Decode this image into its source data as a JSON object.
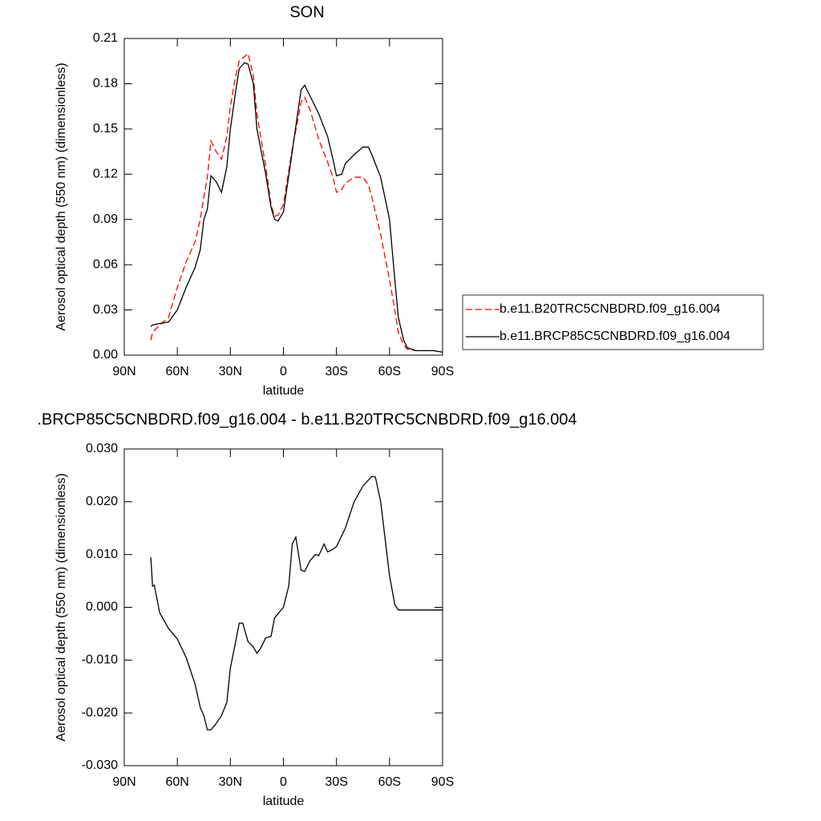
{
  "chart_data": [
    {
      "type": "line",
      "title": "SON",
      "xlabel": "latitude",
      "ylabel": "Aerosol optical depth (550 nm) (dimensionless)",
      "x": [
        75,
        74,
        70,
        65,
        60,
        55,
        50,
        47,
        45,
        43,
        41,
        38,
        35,
        32,
        30,
        27,
        25,
        22,
        20,
        17,
        15,
        10,
        7,
        5,
        3,
        0,
        -5,
        -8,
        -10,
        -12,
        -15,
        -20,
        -25,
        -28,
        -30,
        -33,
        -35,
        -40,
        -45,
        -48,
        -50,
        -55,
        -60,
        -63,
        -65,
        -68,
        -70,
        -75,
        -80,
        -85,
        -90
      ],
      "series": [
        {
          "name": "b.e11.B20TRC5CNBDRD.f09_g16.004",
          "color": "#ff0000",
          "dashed": true,
          "values": [
            0.01,
            0.015,
            0.02,
            0.025,
            0.045,
            0.062,
            0.075,
            0.09,
            0.105,
            0.118,
            0.142,
            0.135,
            0.13,
            0.145,
            0.165,
            0.185,
            0.195,
            0.198,
            0.2,
            0.185,
            0.16,
            0.125,
            0.1,
            0.092,
            0.093,
            0.1,
            0.137,
            0.155,
            0.168,
            0.171,
            0.163,
            0.143,
            0.128,
            0.118,
            0.108,
            0.11,
            0.114,
            0.118,
            0.118,
            0.113,
            0.105,
            0.08,
            0.05,
            0.03,
            0.015,
            0.007,
            0.004,
            0.003,
            0.003,
            0.003,
            0.002
          ]
        },
        {
          "name": "b.e11.BRCP85C5CNBDRD.f09_g16.004",
          "color": "#000000",
          "dashed": false,
          "values": [
            0.019,
            0.02,
            0.021,
            0.022,
            0.03,
            0.045,
            0.058,
            0.07,
            0.09,
            0.097,
            0.119,
            0.115,
            0.108,
            0.125,
            0.15,
            0.175,
            0.19,
            0.194,
            0.193,
            0.18,
            0.15,
            0.12,
            0.098,
            0.09,
            0.089,
            0.095,
            0.135,
            0.16,
            0.176,
            0.179,
            0.172,
            0.16,
            0.145,
            0.13,
            0.119,
            0.12,
            0.127,
            0.133,
            0.138,
            0.138,
            0.133,
            0.118,
            0.09,
            0.05,
            0.025,
            0.01,
            0.005,
            0.003,
            0.003,
            0.003,
            0.002
          ]
        }
      ],
      "xlim": [
        90,
        -90
      ],
      "xticks": [
        {
          "value": 90,
          "label": "90N"
        },
        {
          "value": 60,
          "label": "60N"
        },
        {
          "value": 30,
          "label": "30N"
        },
        0,
        {
          "value": -30,
          "label": "30S"
        },
        {
          "value": -60,
          "label": "60S"
        },
        {
          "value": -90,
          "label": "90S"
        }
      ],
      "ylim": [
        0,
        0.21
      ],
      "yticks": [
        {
          "value": 0,
          "label": "0.00"
        },
        {
          "value": 0.03,
          "label": "0.03"
        },
        {
          "value": 0.06,
          "label": "0.06"
        },
        {
          "value": 0.09,
          "label": "0.09"
        },
        {
          "value": 0.12,
          "label": "0.12"
        },
        {
          "value": 0.15,
          "label": "0.15"
        },
        {
          "value": 0.18,
          "label": "0.18"
        },
        {
          "value": 0.21,
          "label": "0.21"
        }
      ],
      "legend": "right"
    },
    {
      "type": "line",
      "title": ".BRCP85C5CNBDRD.f09_g16.004 - b.e11.B20TRC5CNBDRD.f09_g16.004",
      "xlabel": "latitude",
      "ylabel": "Aerosol optical depth (550 nm) (dimensionless)",
      "x": [
        75,
        74,
        73,
        70,
        65,
        60,
        55,
        50,
        47,
        45,
        43,
        41,
        38,
        35,
        32,
        30,
        27,
        25,
        23,
        20,
        17,
        15,
        13,
        10,
        7,
        5,
        0,
        -3,
        -5,
        -7,
        -10,
        -12,
        -15,
        -18,
        -20,
        -23,
        -25,
        -28,
        -30,
        -35,
        -40,
        -45,
        -50,
        -52,
        -55,
        -60,
        -63,
        -65,
        -70,
        -75,
        -80,
        -90
      ],
      "values": [
        0.0095,
        0.004,
        0.0042,
        -0.001,
        -0.004,
        -0.006,
        -0.0095,
        -0.0145,
        -0.019,
        -0.0205,
        -0.0232,
        -0.0232,
        -0.022,
        -0.0205,
        -0.018,
        -0.0115,
        -0.0065,
        -0.003,
        -0.003,
        -0.0065,
        -0.0075,
        -0.0087,
        -0.0078,
        -0.0058,
        -0.0055,
        -0.002,
        0.0,
        0.004,
        0.012,
        0.0133,
        0.007,
        0.0068,
        0.0088,
        0.01,
        0.0098,
        0.012,
        0.0105,
        0.011,
        0.0115,
        0.015,
        0.02,
        0.023,
        0.0248,
        0.0247,
        0.02,
        0.006,
        0.0005,
        -0.0005,
        -0.0005,
        -0.0005,
        -0.0005,
        -0.0005
      ],
      "color": "#000000",
      "xlim": [
        90,
        -90
      ],
      "xticks": [
        {
          "value": 90,
          "label": "90N"
        },
        {
          "value": 60,
          "label": "60N"
        },
        {
          "value": 30,
          "label": "30N"
        },
        0,
        {
          "value": -30,
          "label": "30S"
        },
        {
          "value": -60,
          "label": "60S"
        },
        {
          "value": -90,
          "label": "90S"
        }
      ],
      "ylim": [
        -0.03,
        0.03
      ],
      "yticks": [
        {
          "value": -0.03,
          "label": "-0.030"
        },
        {
          "value": -0.02,
          "label": "-0.020"
        },
        {
          "value": -0.01,
          "label": "-0.010"
        },
        {
          "value": 0,
          "label": "0.000"
        },
        {
          "value": 0.01,
          "label": "0.010"
        },
        {
          "value": 0.02,
          "label": "0.020"
        },
        {
          "value": 0.03,
          "label": "0.030"
        }
      ]
    }
  ]
}
